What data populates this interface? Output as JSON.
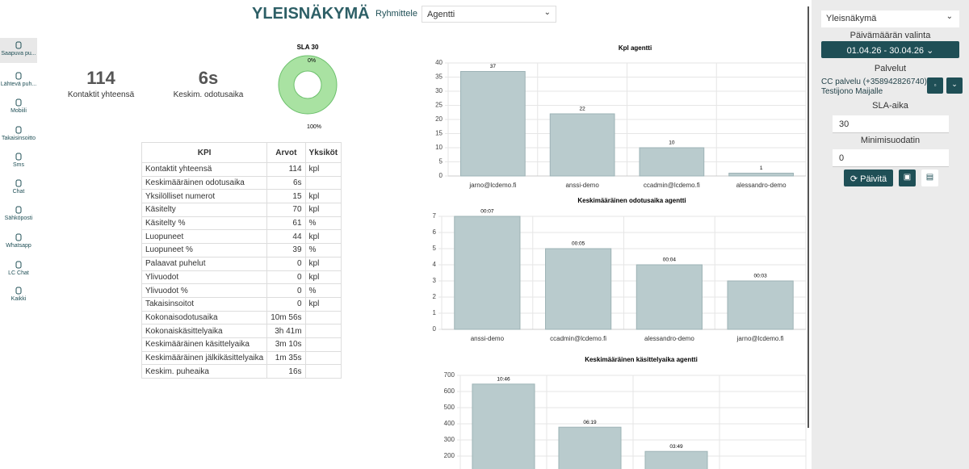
{
  "header": {
    "title": "YLEISNÄKYMÄ",
    "group_label": "Ryhmittele",
    "group_value": "Agentti"
  },
  "nav": [
    "Saapuva pu...",
    "Lähtevä puh...",
    "Mobiili",
    "Takaisinsoitto",
    "Sms",
    "Chat",
    "Sähköposti",
    "Whatsapp",
    "LC Chat",
    "Kaikki"
  ],
  "stats": [
    {
      "value": 114,
      "label": "Kontaktit yhteensä"
    },
    {
      "value": "6s",
      "label": "Keskim. odotusaika"
    }
  ],
  "table": {
    "headers": [
      "KPI",
      "Arvot",
      "Yksiköt"
    ],
    "rows": [
      [
        "Kontaktit yhteensä",
        "114",
        "kpl"
      ],
      [
        "Keskimääräinen odotusaika",
        "6s"
      ],
      [
        "Yksilölliset numerot",
        "15",
        "kpl"
      ],
      [
        "Käsitelty",
        "70",
        "kpl"
      ],
      [
        "Käsitelty %",
        "61",
        "%"
      ],
      [
        "Luopuneet",
        "44",
        "kpl"
      ],
      [
        "Luopuneet %",
        "39",
        "%"
      ],
      [
        "Palaavat puhelut",
        "0",
        "kpl"
      ],
      [
        "Ylivuodot",
        "0",
        "kpl"
      ],
      [
        "Ylivuodot %",
        "0",
        "%"
      ],
      [
        "Takaisinsoitot",
        "0",
        "kpl"
      ],
      [
        "Kokonaisodotusaika",
        "10m 56s"
      ],
      [
        "Kokonaiskäsittelyaika",
        "3h 41m"
      ],
      [
        "Keskimääräinen käsittelyaika",
        "3m 10s"
      ],
      [
        "Keskimääräinen jälkikäsittelyaika",
        "1m 35s"
      ],
      [
        "Keskim. puheaika",
        "16s"
      ]
    ]
  },
  "chart_data": [
    {
      "type": "donut",
      "title": "SLA 30",
      "values": [
        0,
        100
      ],
      "value_labels": [
        "0%",
        "100%"
      ],
      "colors": [
        "#4f9a4f",
        "#a9e2a2"
      ]
    },
    {
      "type": "bar",
      "title": "Kpl agentti",
      "categories": [
        "jarno@lcdemo.fi",
        "anssi-demo",
        "ccadmin@lcdemo.fi",
        "alessandro-demo"
      ],
      "values": [
        37,
        22,
        10,
        1
      ],
      "color": "#b9cbcd",
      "ylim": [
        0,
        40
      ],
      "yticks": [
        0,
        5,
        10,
        15,
        20,
        25,
        30,
        35,
        40
      ],
      "grid": true
    },
    {
      "type": "bar",
      "title": "Keskimääräinen odotusaika agentti",
      "categories": [
        "anssi-demo",
        "ccadmin@lcdemo.fi",
        "alessandro-demo",
        "jarno@lcdemo.fi"
      ],
      "values": [
        7,
        5,
        4,
        3
      ],
      "value_labels": [
        "00:07",
        "00:05",
        "00:04",
        "00:03"
      ],
      "color": "#b9cbcd",
      "ylim": [
        0,
        7
      ],
      "yticks": [
        0,
        1,
        2,
        3,
        4,
        5,
        6,
        7
      ],
      "grid": true
    },
    {
      "type": "bar",
      "title": "Keskimääräinen käsittelyaika agentti",
      "categories": [
        null,
        null,
        null,
        null
      ],
      "values": [
        646,
        379,
        229,
        null
      ],
      "value_labels": [
        "10:46",
        "06:19",
        "03:49",
        null
      ],
      "color": "#b9cbcd",
      "ylim": [
        0,
        700
      ],
      "yticks": [
        200,
        300,
        400,
        500,
        600,
        700
      ],
      "grid": true
    }
  ],
  "panel": {
    "view": "Yleisnäkymä",
    "date_label": "Päivämäärän valinta",
    "date_range": "01.04.26 - 30.04.26",
    "services_label": "Palvelut",
    "services": [
      "CC palvelu (+358942826740)",
      "Testijono Maijalle"
    ],
    "sla_label": "SLA-aika",
    "sla_value": 30,
    "min_label": "Minimisuodatin",
    "min_value": 0,
    "refresh": "Päivitä"
  }
}
